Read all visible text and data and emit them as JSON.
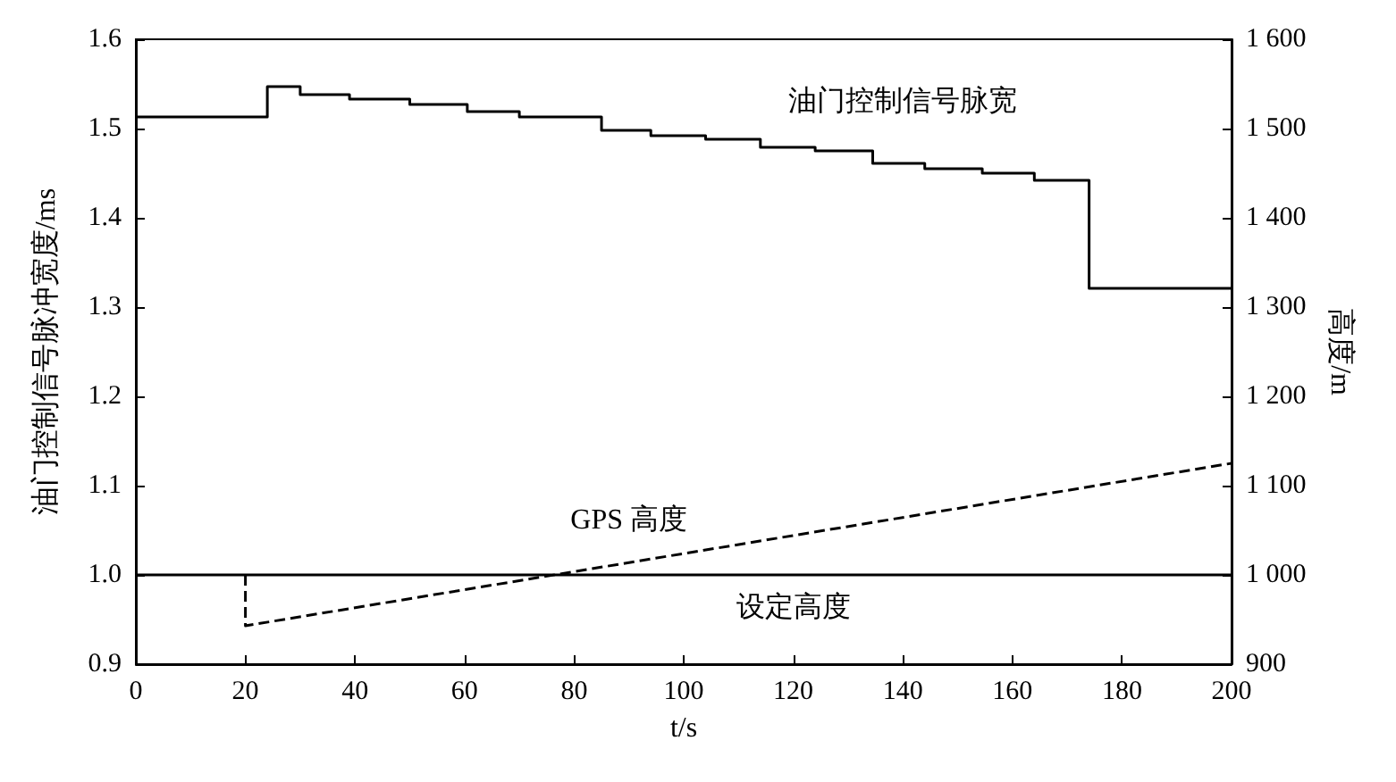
{
  "chart_data": {
    "type": "step",
    "xlabel": "t/s",
    "ylabel": "油门控制信号脉冲宽度/ms",
    "y2label": "高度/m",
    "xlim": [
      0,
      200
    ],
    "xticks": [
      0,
      20,
      40,
      60,
      80,
      100,
      120,
      140,
      160,
      180,
      200
    ],
    "ylim": [
      0.9,
      1.6
    ],
    "yticks": [
      0.9,
      {
        "value": 1,
        "label": "1.0"
      },
      1.1,
      1.2,
      1.3,
      1.4,
      1.5,
      1.6
    ],
    "y2lim": [
      900,
      1600
    ],
    "y2ticks": [
      900,
      {
        "value": 1000,
        "label": "1 000"
      },
      {
        "value": 1100,
        "label": "1 100"
      },
      {
        "value": 1200,
        "label": "1 200"
      },
      {
        "value": 1300,
        "label": "1 300"
      },
      {
        "value": 1400,
        "label": "1 400"
      },
      {
        "value": 1500,
        "label": "1 500"
      },
      {
        "value": 1600,
        "label": "1 600"
      }
    ],
    "grid": false,
    "marker": "none",
    "series": [
      {
        "color": "#000000",
        "line_style": "solid",
        "x": [
          0,
          24,
          30,
          39,
          50,
          60.5,
          70,
          85,
          94,
          104,
          114,
          124,
          134.5,
          144,
          154.5,
          164,
          174,
          200
        ],
        "values": [
          1.513,
          1.547,
          1.538,
          1.533,
          1.527,
          1.519,
          1.513,
          1.498,
          1.492,
          1.488,
          1.479,
          1.475,
          1.461,
          1.455,
          1.45,
          1.442,
          1.321,
          1.321
        ]
      },
      {
        "type": "line",
        "color": "#000000",
        "line_style": "solid",
        "axis": "y2",
        "x": [
          0,
          200
        ],
        "values": [
          1000,
          1000
        ]
      },
      {
        "type": "line",
        "color": "#000000",
        "line_style": "dashed",
        "axis": "y2",
        "x": [
          20,
          20,
          200
        ],
        "values": [
          1000,
          943,
          1125
        ]
      }
    ],
    "annotations": [
      "油门控制信号脉宽",
      "GPS 高度",
      "设定高度"
    ]
  }
}
